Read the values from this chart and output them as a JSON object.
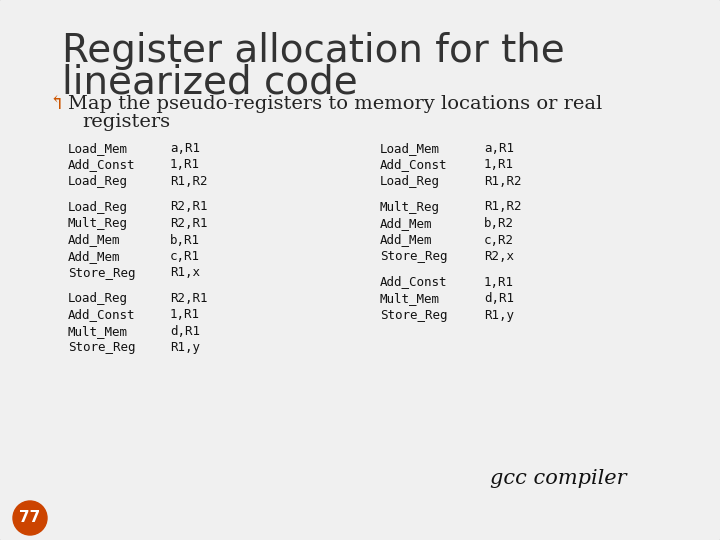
{
  "title_line1": "Register allocation for the",
  "title_line2": "linearized code",
  "bullet_symbol": "↰",
  "bullet_text_line1": "Map the pseudo-registers to memory locations or real",
  "bullet_text_line2": "   registers",
  "left_col": [
    [
      "Load_Mem",
      "a,R1"
    ],
    [
      "Add_Const",
      "1,R1"
    ],
    [
      "Load_Reg",
      "R1,R2"
    ],
    "",
    [
      "Load_Reg",
      "R2,R1"
    ],
    [
      "Mult_Reg",
      "R2,R1"
    ],
    [
      "Add_Mem",
      "b,R1"
    ],
    [
      "Add_Mem",
      "c,R1"
    ],
    [
      "Store_Reg",
      "R1,x"
    ],
    "",
    [
      "Load_Reg",
      "R2,R1"
    ],
    [
      "Add_Const",
      "1,R1"
    ],
    [
      "Mult_Mem",
      "d,R1"
    ],
    [
      "Store_Reg",
      "R1,y"
    ]
  ],
  "right_col": [
    [
      "Load_Mem",
      "a,R1"
    ],
    [
      "Add_Const",
      "1,R1"
    ],
    [
      "Load_Reg",
      "R1,R2"
    ],
    "",
    [
      "Mult_Reg",
      "R1,R2"
    ],
    [
      "Add_Mem",
      "b,R2"
    ],
    [
      "Add_Mem",
      "c,R2"
    ],
    [
      "Store_Reg",
      "R2,x"
    ],
    "",
    [
      "Add_Const",
      "1,R1"
    ],
    [
      "Mult_Mem",
      "d,R1"
    ],
    [
      "Store_Reg",
      "R1,y"
    ]
  ],
  "gcc_label": "gcc compiler",
  "page_number": "77",
  "bg_color": "#f0f0f0",
  "title_color": "#333333",
  "bullet_arrow_color": "#cc5500",
  "bullet_text_color": "#222222",
  "code_color": "#111111",
  "page_bg_color": "#cc4400",
  "page_text_color": "#ffffff",
  "title_fontsize": 28,
  "bullet_fontsize": 14,
  "code_fontsize": 9,
  "gcc_fontsize": 15
}
